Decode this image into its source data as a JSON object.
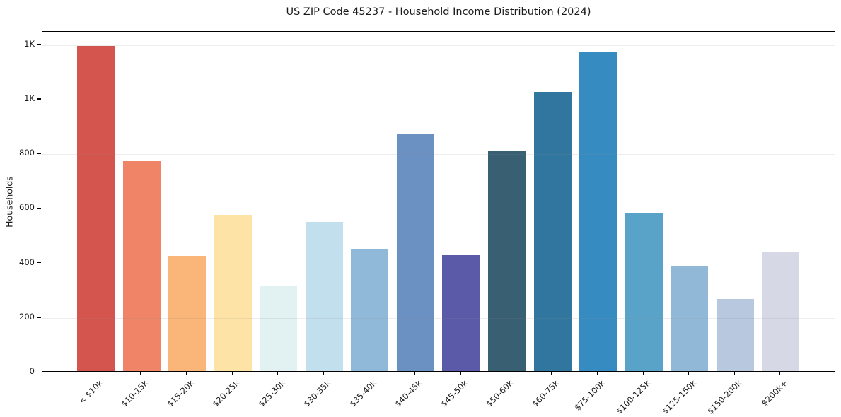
{
  "figure": {
    "background": "#ffffff"
  },
  "chart_data": {
    "type": "bar",
    "title": "US ZIP Code 45237 - Household Income Distribution (2024)",
    "xlabel": "",
    "ylabel": "Households",
    "categories": [
      "< $10k",
      "$10-15k",
      "$15-20k",
      "$20-25k",
      "$25-30k",
      "$30-35k",
      "$35-40k",
      "$40-45k",
      "$45-50k",
      "$50-60k",
      "$60-75k",
      "$75-100k",
      "$100-125k",
      "$125-150k",
      "$150-200k",
      "$200k+"
    ],
    "values": [
      1190,
      768,
      421,
      571,
      313,
      546,
      447,
      867,
      424,
      804,
      1024,
      1170,
      579,
      383,
      264,
      434
    ],
    "bar_colors": [
      "#d4544e",
      "#f08467",
      "#f9b678",
      "#fde3a5",
      "#e2f1f2",
      "#c2dfed",
      "#8fb8d9",
      "#6a91c1",
      "#5a5aa8",
      "#395f73",
      "#30769f",
      "#368bc1",
      "#5aa3c8",
      "#92b8d8",
      "#b8c8df",
      "#d6d8e6"
    ],
    "ylim": [
      0,
      1248
    ],
    "yticks": [
      {
        "value": 0,
        "label": "0"
      },
      {
        "value": 200,
        "label": "200"
      },
      {
        "value": 400,
        "label": "400"
      },
      {
        "value": 600,
        "label": "600"
      },
      {
        "value": 800,
        "label": "800"
      },
      {
        "value": 1000,
        "label": "1K"
      },
      {
        "value": 1200,
        "label": "1K"
      }
    ],
    "grid": "horizontal, light gray, drawn visible over bars",
    "legend": "none",
    "axis_color": "#000000",
    "text_color": "#1a1a1a",
    "grid_color": "#eaeaea"
  }
}
